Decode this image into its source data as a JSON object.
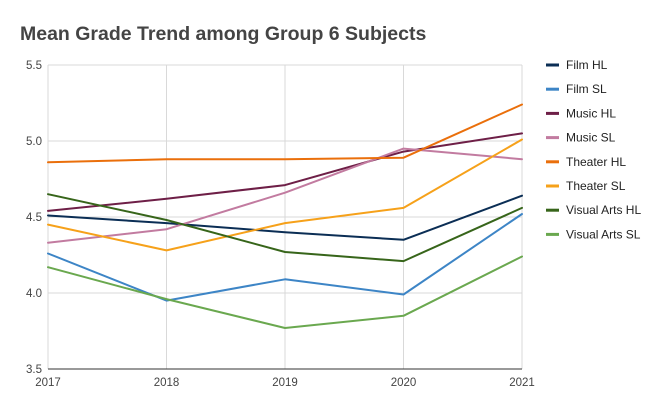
{
  "chart_data": {
    "type": "line",
    "title": "Mean Grade Trend among Group 6 Subjects",
    "xlabel": "",
    "ylabel": "",
    "categories": [
      "2017",
      "2018",
      "2019",
      "2020",
      "2021"
    ],
    "yticks": [
      "3.5",
      "4.0",
      "4.5",
      "5.0",
      "5.5"
    ],
    "ylim": [
      3.5,
      5.5
    ],
    "grid": true,
    "legend_position": "right",
    "series": [
      {
        "name": "Film HL",
        "color": "#0b2e55",
        "values": [
          4.51,
          4.46,
          4.4,
          4.35,
          4.64
        ]
      },
      {
        "name": "Film SL",
        "color": "#3d85c6",
        "values": [
          4.26,
          3.95,
          4.09,
          3.99,
          4.52
        ]
      },
      {
        "name": "Music HL",
        "color": "#6e1f47",
        "values": [
          4.54,
          4.62,
          4.71,
          4.93,
          5.05
        ]
      },
      {
        "name": "Music SL",
        "color": "#c27ba0",
        "values": [
          4.33,
          4.42,
          4.66,
          4.95,
          4.88
        ]
      },
      {
        "name": "Theater HL",
        "color": "#ea6f0b",
        "values": [
          4.86,
          4.88,
          4.88,
          4.89,
          5.24
        ]
      },
      {
        "name": "Theater SL",
        "color": "#f6a11a",
        "values": [
          4.45,
          4.28,
          4.46,
          4.56,
          5.01
        ]
      },
      {
        "name": "Visual Arts HL",
        "color": "#37651a",
        "values": [
          4.65,
          4.48,
          4.27,
          4.21,
          4.56
        ]
      },
      {
        "name": "Visual Arts SL",
        "color": "#6aa84f",
        "values": [
          4.17,
          3.96,
          3.77,
          3.85,
          4.24
        ]
      }
    ]
  }
}
